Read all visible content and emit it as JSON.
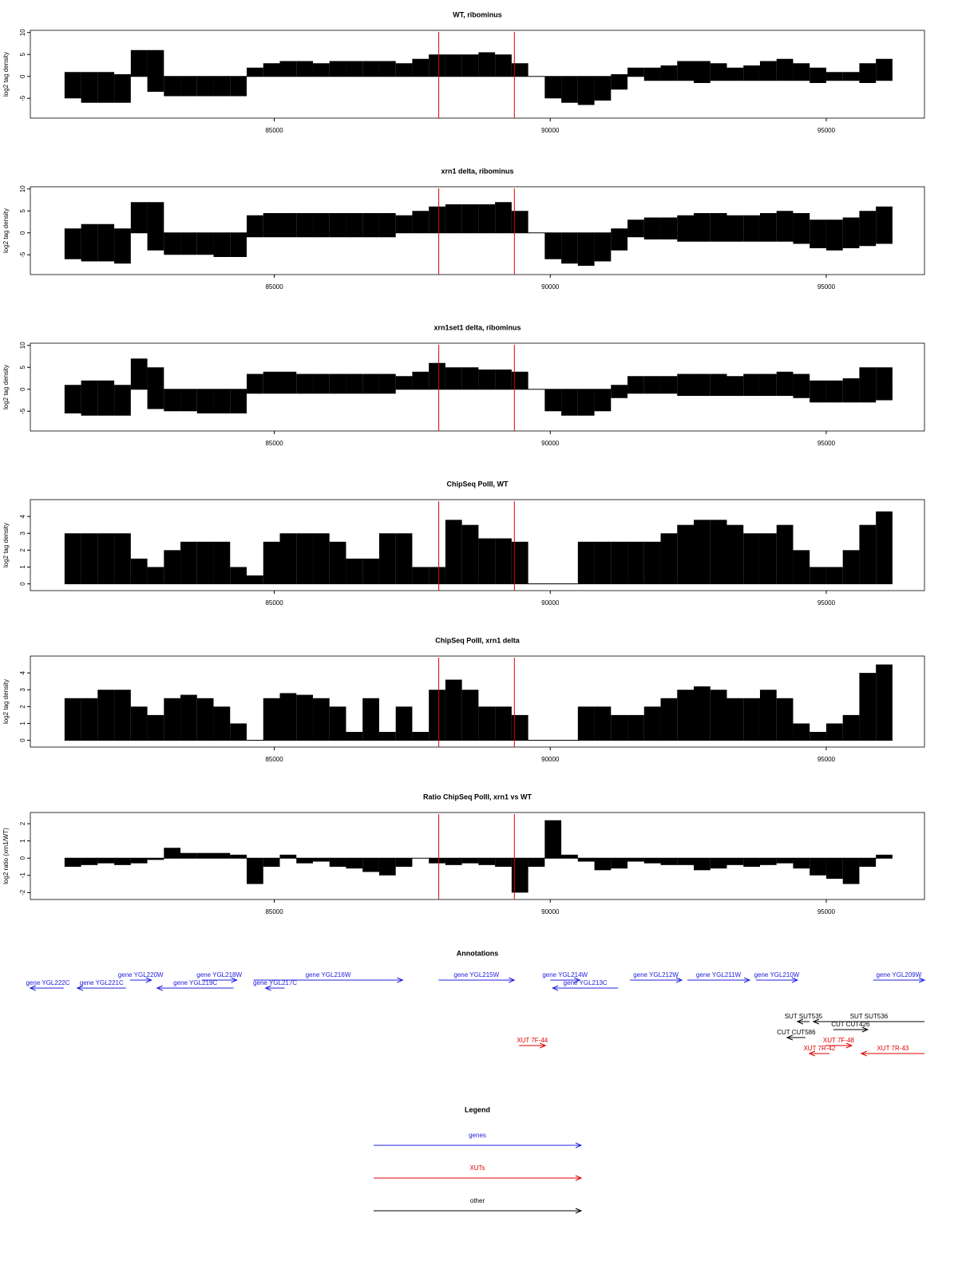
{
  "chart_data": [
    {
      "type": "bar",
      "title": "WT, ribominus",
      "ylabel": "log2 tag density",
      "xlim": [
        80580,
        96780
      ],
      "xticks": [
        85000,
        90000,
        95000
      ],
      "ylim": [
        -9.5,
        10.5
      ],
      "yticks": [
        -5,
        0,
        5,
        10
      ],
      "color": "#000000",
      "marker_color": "#e00000",
      "markers": [
        87980,
        89350
      ],
      "x": [
        81350,
        81650,
        81950,
        82250,
        82550,
        82850,
        83150,
        83450,
        83750,
        84050,
        84350,
        84650,
        84950,
        85250,
        85550,
        85850,
        86150,
        86450,
        86750,
        87050,
        87350,
        87650,
        87950,
        88250,
        88550,
        88850,
        89150,
        89450,
        89750,
        90050,
        90350,
        90650,
        90950,
        91250,
        91550,
        91850,
        92150,
        92450,
        92750,
        93050,
        93350,
        93650,
        93950,
        94250,
        94550,
        94850,
        95150,
        95450,
        95750,
        96050
      ],
      "values": [
        1,
        1,
        1,
        0.5,
        6,
        6,
        0,
        0,
        0,
        0,
        0,
        2,
        3,
        3.5,
        3.5,
        3,
        3.5,
        3.5,
        3.5,
        3.5,
        3,
        4,
        5,
        5,
        5,
        5.5,
        5,
        3,
        0,
        0,
        0,
        0,
        0,
        0.5,
        2,
        2,
        2.5,
        3.5,
        3.5,
        3,
        2,
        2.5,
        3.5,
        4,
        3,
        2,
        1,
        1,
        3,
        4
      ],
      "negative_values": [
        -5,
        -6,
        -6,
        -6,
        0,
        -3.5,
        -4.5,
        -4.5,
        -4.5,
        -4.5,
        -4.5,
        0,
        0,
        0,
        0,
        0,
        0,
        0,
        0,
        0,
        0,
        0,
        0,
        0,
        0,
        0,
        0,
        0,
        0,
        -5,
        -6,
        -6.5,
        -5.5,
        -3,
        0,
        -1,
        -1,
        -1,
        -1.5,
        -1,
        -1,
        -1,
        -1,
        -1,
        -1,
        -1.5,
        -1,
        -1,
        -1.5,
        -1
      ]
    },
    {
      "type": "bar",
      "title": "xrn1 delta, ribominus",
      "ylabel": "log2 tag density",
      "xlim": [
        80580,
        96780
      ],
      "xticks": [
        85000,
        90000,
        95000
      ],
      "ylim": [
        -9.5,
        10.5
      ],
      "yticks": [
        -5,
        0,
        5,
        10
      ],
      "color": "#000000",
      "marker_color": "#e00000",
      "markers": [
        87980,
        89350
      ],
      "x": [
        81350,
        81650,
        81950,
        82250,
        82550,
        82850,
        83150,
        83450,
        83750,
        84050,
        84350,
        84650,
        84950,
        85250,
        85550,
        85850,
        86150,
        86450,
        86750,
        87050,
        87350,
        87650,
        87950,
        88250,
        88550,
        88850,
        89150,
        89450,
        89750,
        90050,
        90350,
        90650,
        90950,
        91250,
        91550,
        91850,
        92150,
        92450,
        92750,
        93050,
        93350,
        93650,
        93950,
        94250,
        94550,
        94850,
        95150,
        95450,
        95750,
        96050
      ],
      "values": [
        1,
        2,
        2,
        1,
        7,
        7,
        0,
        0,
        0,
        0,
        0,
        4,
        4.5,
        4.5,
        4.5,
        4.5,
        4.5,
        4.5,
        4.5,
        4.5,
        4,
        5,
        6,
        6.5,
        6.5,
        6.5,
        7,
        5,
        0,
        0,
        0,
        0,
        0,
        1,
        3,
        3.5,
        3.5,
        4,
        4.5,
        4.5,
        4,
        4,
        4.5,
        5,
        4.5,
        3,
        3,
        3.5,
        5,
        6
      ],
      "negative_values": [
        -6,
        -6.5,
        -6.5,
        -7,
        0,
        -4,
        -5,
        -5,
        -5,
        -5.5,
        -5.5,
        -1,
        -1,
        -1,
        -1,
        -1,
        -1,
        -1,
        -1,
        -1,
        0,
        0,
        0,
        0,
        0,
        0,
        0,
        0,
        0,
        -6,
        -7,
        -7.5,
        -6.5,
        -4,
        -1,
        -1.5,
        -1.5,
        -2,
        -2,
        -2,
        -2,
        -2,
        -2,
        -2,
        -2.5,
        -3.5,
        -4,
        -3.5,
        -3,
        -2.5
      ]
    },
    {
      "type": "bar",
      "title": "xrn1set1 delta, ribominus",
      "ylabel": "log2 tag density",
      "xlim": [
        80580,
        96780
      ],
      "xticks": [
        85000,
        90000,
        95000
      ],
      "ylim": [
        -9.5,
        10.5
      ],
      "yticks": [
        -5,
        0,
        5,
        10
      ],
      "color": "#000000",
      "marker_color": "#e00000",
      "markers": [
        87980,
        89350
      ],
      "x": [
        81350,
        81650,
        81950,
        82250,
        82550,
        82850,
        83150,
        83450,
        83750,
        84050,
        84350,
        84650,
        84950,
        85250,
        85550,
        85850,
        86150,
        86450,
        86750,
        87050,
        87350,
        87650,
        87950,
        88250,
        88550,
        88850,
        89150,
        89450,
        89750,
        90050,
        90350,
        90650,
        90950,
        91250,
        91550,
        91850,
        92150,
        92450,
        92750,
        93050,
        93350,
        93650,
        93950,
        94250,
        94550,
        94850,
        95150,
        95450,
        95750,
        96050
      ],
      "values": [
        1,
        2,
        2,
        1,
        7,
        5,
        0,
        0,
        0,
        0,
        0,
        3.5,
        4,
        4,
        3.5,
        3.5,
        3.5,
        3.5,
        3.5,
        3.5,
        3,
        4,
        6,
        5,
        5,
        4.5,
        4.5,
        4,
        0,
        0,
        0,
        0,
        0,
        1,
        3,
        3,
        3,
        3.5,
        3.5,
        3.5,
        3,
        3.5,
        3.5,
        4,
        3.5,
        2,
        2,
        2.5,
        5,
        5
      ],
      "negative_values": [
        -5.5,
        -6,
        -6,
        -6,
        0,
        -4.5,
        -5,
        -5,
        -5.5,
        -5.5,
        -5.5,
        -1,
        -1,
        -1,
        -1,
        -1,
        -1,
        -1,
        -1,
        -1,
        0,
        0,
        0,
        0,
        0,
        0,
        0,
        0,
        0,
        -5,
        -6,
        -6,
        -5,
        -2,
        -1,
        -1,
        -1,
        -1.5,
        -1.5,
        -1.5,
        -1.5,
        -1.5,
        -1.5,
        -1.5,
        -2,
        -3,
        -3,
        -3,
        -3,
        -2.5
      ]
    },
    {
      "type": "bar",
      "title": "ChipSeq PolII, WT",
      "ylabel": "log2 tag density",
      "xlim": [
        80580,
        96780
      ],
      "xticks": [
        85000,
        90000,
        95000
      ],
      "ylim": [
        -0.4,
        5
      ],
      "yticks": [
        0,
        1,
        2,
        3,
        4
      ],
      "color": "#000000",
      "marker_color": "#e00000",
      "markers": [
        87980,
        89350
      ],
      "x": [
        81350,
        81650,
        81950,
        82250,
        82550,
        82850,
        83150,
        83450,
        83750,
        84050,
        84350,
        84650,
        84950,
        85250,
        85550,
        85850,
        86150,
        86450,
        86750,
        87050,
        87350,
        87650,
        87950,
        88250,
        88550,
        88850,
        89150,
        89450,
        89750,
        90050,
        90350,
        90650,
        90950,
        91250,
        91550,
        91850,
        92150,
        92450,
        92750,
        93050,
        93350,
        93650,
        93950,
        94250,
        94550,
        94850,
        95150,
        95450,
        95750,
        96050
      ],
      "values": [
        3,
        3,
        3,
        3,
        1.5,
        1,
        2,
        2.5,
        2.5,
        2.5,
        1,
        0.5,
        2.5,
        3,
        3,
        3,
        2.5,
        1.5,
        1.5,
        3,
        3,
        1,
        1,
        3.8,
        3.5,
        2.7,
        2.7,
        2.5,
        0,
        0,
        0,
        2.5,
        2.5,
        2.5,
        2.5,
        2.5,
        3,
        3.5,
        3.8,
        3.8,
        3.5,
        3,
        3,
        3.5,
        2,
        1,
        1,
        2,
        3.5,
        4.3
      ]
    },
    {
      "type": "bar",
      "title": "ChipSeq PolII, xrn1 delta",
      "ylabel": "log2 tag density",
      "xlim": [
        80580,
        96780
      ],
      "xticks": [
        85000,
        90000,
        95000
      ],
      "ylim": [
        -0.4,
        5
      ],
      "yticks": [
        0,
        1,
        2,
        3,
        4
      ],
      "color": "#000000",
      "marker_color": "#e00000",
      "markers": [
        87980,
        89350
      ],
      "x": [
        81350,
        81650,
        81950,
        82250,
        82550,
        82850,
        83150,
        83450,
        83750,
        84050,
        84350,
        84650,
        84950,
        85250,
        85550,
        85850,
        86150,
        86450,
        86750,
        87050,
        87350,
        87650,
        87950,
        88250,
        88550,
        88850,
        89150,
        89450,
        89750,
        90050,
        90350,
        90650,
        90950,
        91250,
        91550,
        91850,
        92150,
        92450,
        92750,
        93050,
        93350,
        93650,
        93950,
        94250,
        94550,
        94850,
        95150,
        95450,
        95750,
        96050
      ],
      "values": [
        2.5,
        2.5,
        3,
        3,
        2,
        1.5,
        2.5,
        2.7,
        2.5,
        2,
        1,
        0,
        2.5,
        2.8,
        2.7,
        2.5,
        2,
        0.5,
        2.5,
        0.5,
        2,
        0.5,
        3,
        3.6,
        3,
        2,
        2,
        1.5,
        0,
        0,
        0,
        2,
        2,
        1.5,
        1.5,
        2,
        2.5,
        3,
        3.2,
        3,
        2.5,
        2.5,
        3,
        2.5,
        1,
        0.5,
        1,
        1.5,
        4,
        4.5
      ]
    },
    {
      "type": "bar",
      "title": "Ratio ChipSeq PolII, xrn1 vs WT",
      "ylabel": "log2 ratio (xrn1/WT)",
      "xlim": [
        80580,
        96780
      ],
      "xticks": [
        85000,
        90000,
        95000
      ],
      "ylim": [
        -2.4,
        2.65
      ],
      "yticks": [
        -2,
        -1,
        0,
        1,
        2
      ],
      "color": "#000000",
      "marker_color": "#e00000",
      "markers": [
        87980,
        89350
      ],
      "x": [
        81350,
        81650,
        81950,
        82250,
        82550,
        82850,
        83150,
        83450,
        83750,
        84050,
        84350,
        84650,
        84950,
        85250,
        85550,
        85850,
        86150,
        86450,
        86750,
        87050,
        87350,
        87650,
        87950,
        88250,
        88550,
        88850,
        89150,
        89450,
        89750,
        90050,
        90350,
        90650,
        90950,
        91250,
        91550,
        91850,
        92150,
        92450,
        92750,
        93050,
        93350,
        93650,
        93950,
        94250,
        94550,
        94850,
        95150,
        95450,
        95750,
        96050
      ],
      "values": [
        -0.5,
        -0.4,
        -0.3,
        -0.4,
        -0.3,
        -0.1,
        0.6,
        0.3,
        0.3,
        0.3,
        0.2,
        -1.5,
        -0.5,
        0.2,
        -0.3,
        -0.2,
        -0.5,
        -0.6,
        -0.8,
        -1,
        -0.5,
        0,
        -0.3,
        -0.4,
        -0.3,
        -0.4,
        -0.5,
        -2,
        -0.5,
        2.2,
        0.2,
        -0.2,
        -0.7,
        -0.6,
        -0.2,
        -0.3,
        -0.4,
        -0.4,
        -0.7,
        -0.6,
        -0.4,
        -0.5,
        -0.4,
        -0.3,
        -0.6,
        -1,
        -1.2,
        -1.5,
        -0.5,
        0.2
      ]
    }
  ],
  "annotations": {
    "title": "Annotations",
    "xlim": [
      80580,
      96780
    ],
    "genes": {
      "color": "#2020e0",
      "features": [
        {
          "label": "gene YGL222C",
          "start": 80578,
          "end": 81185,
          "strand": "-"
        },
        {
          "label": "gene YGL221C",
          "start": 81431,
          "end": 82312,
          "strand": "-"
        },
        {
          "label": "gene YGL220W",
          "start": 82384,
          "end": 82774,
          "strand": "+"
        },
        {
          "label": "gene YGL219C",
          "start": 82876,
          "end": 84263,
          "strand": "-"
        },
        {
          "label": "gene YGL218W",
          "start": 83685,
          "end": 84321,
          "strand": "+"
        },
        {
          "label": "gene YGL217C",
          "start": 84841,
          "end": 85188,
          "strand": "-"
        },
        {
          "label": "gene YGL216W",
          "start": 84624,
          "end": 87326,
          "strand": "+"
        },
        {
          "label": "gene YGL215W",
          "start": 87976,
          "end": 89349,
          "strand": "+"
        },
        {
          "label": "gene YGL214W",
          "start": 90000,
          "end": 90534,
          "strand": "+"
        },
        {
          "label": "gene YGL213C",
          "start": 90043,
          "end": 91228,
          "strand": "-"
        },
        {
          "label": "gene YGL212W",
          "start": 91444,
          "end": 92384,
          "strand": "+"
        },
        {
          "label": "gene YGL211W",
          "start": 92485,
          "end": 93612,
          "strand": "+"
        },
        {
          "label": "gene YGL210W",
          "start": 93728,
          "end": 94479,
          "strand": "+"
        },
        {
          "label": "gene YGL209W",
          "start": 95852,
          "end": 96780,
          "strand": "+"
        }
      ]
    },
    "other": {
      "color": "#000000",
      "features": [
        {
          "label": "SUT SUT535",
          "start": 94479,
          "end": 94696,
          "strand": "-"
        },
        {
          "label": "SUT SUT536",
          "start": 94768,
          "end": 96780,
          "strand": "-"
        },
        {
          "label": "CUT CUT426",
          "start": 95129,
          "end": 95751,
          "strand": "+"
        },
        {
          "label": "CUT CUT586",
          "start": 94291,
          "end": 94623,
          "strand": "-"
        }
      ]
    },
    "xuts": {
      "color": "#e00000",
      "features": [
        {
          "label": "XUT 7F-44",
          "start": 89436,
          "end": 89913,
          "strand": "+"
        },
        {
          "label": "XUT 7F-48",
          "start": 94985,
          "end": 95462,
          "strand": "+"
        },
        {
          "label": "XUT 7R-42",
          "start": 94696,
          "end": 95057,
          "strand": "-"
        },
        {
          "label": "XUT 7R-43",
          "start": 95635,
          "end": 96780,
          "strand": "-"
        }
      ]
    }
  },
  "legend": {
    "title": "Legend",
    "items": [
      {
        "label": "genes",
        "color": "#2020e0"
      },
      {
        "label": "XUTs",
        "color": "#e00000"
      },
      {
        "label": "other",
        "color": "#000000"
      }
    ]
  }
}
